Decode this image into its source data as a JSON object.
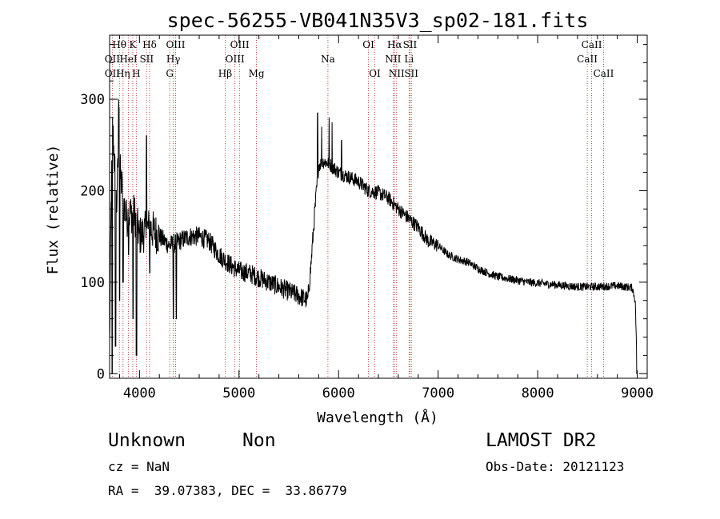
{
  "chart_data": {
    "type": "line",
    "title": "spec-56255-VB041N35V3_sp02-181.fits",
    "xlabel": "Wavelength (Å)",
    "ylabel": "Flux (relative)",
    "xlim": [
      3700,
      9100
    ],
    "ylim": [
      -5,
      370
    ],
    "xticks": [
      4000,
      5000,
      6000,
      7000,
      8000,
      9000
    ],
    "yticks": [
      0,
      100,
      200,
      300
    ],
    "line_color": "#000000",
    "marker_color": "#b22222",
    "spectrum_anchors": [
      [
        3700,
        30
      ],
      [
        3715,
        180
      ],
      [
        3730,
        270
      ],
      [
        3750,
        230
      ],
      [
        3770,
        180
      ],
      [
        3790,
        250
      ],
      [
        3810,
        215
      ],
      [
        3840,
        190
      ],
      [
        3870,
        170
      ],
      [
        3900,
        175
      ],
      [
        3950,
        175
      ],
      [
        4000,
        150
      ],
      [
        4100,
        160
      ],
      [
        4200,
        150
      ],
      [
        4300,
        140
      ],
      [
        4400,
        145
      ],
      [
        4500,
        150
      ],
      [
        4600,
        150
      ],
      [
        4700,
        145
      ],
      [
        4800,
        130
      ],
      [
        4900,
        120
      ],
      [
        5000,
        112
      ],
      [
        5100,
        110
      ],
      [
        5200,
        105
      ],
      [
        5300,
        100
      ],
      [
        5400,
        95
      ],
      [
        5500,
        90
      ],
      [
        5600,
        85
      ],
      [
        5690,
        80
      ],
      [
        5720,
        115
      ],
      [
        5760,
        175
      ],
      [
        5800,
        228
      ],
      [
        5850,
        232
      ],
      [
        5900,
        230
      ],
      [
        6000,
        220
      ],
      [
        6100,
        215
      ],
      [
        6200,
        210
      ],
      [
        6300,
        200
      ],
      [
        6400,
        198
      ],
      [
        6500,
        192
      ],
      [
        6600,
        180
      ],
      [
        6700,
        170
      ],
      [
        6800,
        160
      ],
      [
        6900,
        145
      ],
      [
        7000,
        140
      ],
      [
        7100,
        130
      ],
      [
        7200,
        125
      ],
      [
        7300,
        122
      ],
      [
        7400,
        115
      ],
      [
        7500,
        110
      ],
      [
        7600,
        106
      ],
      [
        7700,
        104
      ],
      [
        7800,
        102
      ],
      [
        7900,
        100
      ],
      [
        8000,
        99
      ],
      [
        8200,
        97
      ],
      [
        8400,
        95
      ],
      [
        8600,
        95
      ],
      [
        8800,
        96
      ],
      [
        8950,
        94
      ],
      [
        8980,
        80
      ],
      [
        9000,
        0
      ]
    ],
    "spectrum_dips": [
      [
        3725,
        0
      ],
      [
        3760,
        30
      ],
      [
        3800,
        80
      ],
      [
        3835,
        100
      ],
      [
        3890,
        130
      ],
      [
        3935,
        60
      ],
      [
        3970,
        20
      ],
      [
        4070,
        0
      ],
      [
        4103,
        110
      ],
      [
        4340,
        60
      ],
      [
        4370,
        60
      ]
    ],
    "spectrum_peaks": [
      [
        3790,
        300
      ],
      [
        3795,
        290
      ],
      [
        5790,
        285
      ],
      [
        5830,
        270
      ],
      [
        5905,
        280
      ],
      [
        5935,
        275
      ],
      [
        6030,
        255
      ],
      [
        4070,
        260
      ]
    ],
    "lines": [
      {
        "label": "Hθ",
        "wavelength": 3798,
        "row": 0,
        "dx": 0
      },
      {
        "label": "K",
        "wavelength": 3933,
        "row": 0,
        "dx": 0
      },
      {
        "label": "Hδ",
        "wavelength": 4102,
        "row": 0,
        "dx": 0
      },
      {
        "label": "OIII",
        "wavelength": 4363,
        "row": 0,
        "dx": 0
      },
      {
        "label": "OIII",
        "wavelength": 5007,
        "row": 0,
        "dx": 0
      },
      {
        "label": "OI",
        "wavelength": 6300,
        "row": 0,
        "dx": 0
      },
      {
        "label": "Hα",
        "wavelength": 6563,
        "row": 0,
        "dx": 0
      },
      {
        "label": "SII",
        "wavelength": 6717,
        "row": 0,
        "dx": 0
      },
      {
        "label": "CaII",
        "wavelength": 8542,
        "row": 0,
        "dx": 0
      },
      {
        "label": "OII",
        "wavelength": 3727,
        "row": 1,
        "dx": 0
      },
      {
        "label": "HeI",
        "wavelength": 3889,
        "row": 1,
        "dx": 0
      },
      {
        "label": "SII",
        "wavelength": 4072,
        "row": 1,
        "dx": 0
      },
      {
        "label": "Hγ",
        "wavelength": 4340,
        "row": 1,
        "dx": 0
      },
      {
        "label": "OIII",
        "wavelength": 4959,
        "row": 1,
        "dx": 0
      },
      {
        "label": "Na",
        "wavelength": 5893,
        "row": 1,
        "dx": 0
      },
      {
        "label": "NII",
        "wavelength": 6548,
        "row": 1,
        "dx": 0
      },
      {
        "label": "Li",
        "wavelength": 6708,
        "row": 1,
        "dx": 0
      },
      {
        "label": "CaII",
        "wavelength": 8498,
        "row": 1,
        "dx": 0
      },
      {
        "label": "OII",
        "wavelength": 3727,
        "row": 2,
        "dx": 0
      },
      {
        "label": "Hη",
        "wavelength": 3835,
        "row": 2,
        "dx": 0
      },
      {
        "label": "H",
        "wavelength": 3968,
        "row": 2,
        "dx": 0
      },
      {
        "label": "G",
        "wavelength": 4304,
        "row": 2,
        "dx": 0
      },
      {
        "label": "Hβ",
        "wavelength": 4861,
        "row": 2,
        "dx": 0
      },
      {
        "label": "Mg",
        "wavelength": 5175,
        "row": 2,
        "dx": 0
      },
      {
        "label": "OI",
        "wavelength": 6364,
        "row": 2,
        "dx": 0
      },
      {
        "label": "NII",
        "wavelength": 6583,
        "row": 2,
        "dx": 0
      },
      {
        "label": "SII",
        "wavelength": 6731,
        "row": 2,
        "dx": 0
      },
      {
        "label": "CaII",
        "wavelength": 8662,
        "row": 2,
        "dx": 0
      }
    ],
    "line_positions": [
      3727,
      3798,
      3835,
      3889,
      3933,
      3968,
      4072,
      4102,
      4304,
      4340,
      4363,
      4861,
      4959,
      5007,
      5175,
      5893,
      6300,
      6364,
      6548,
      6563,
      6583,
      6708,
      6717,
      6731,
      8498,
      8542,
      8662
    ]
  },
  "info": {
    "class": "Unknown",
    "subclass": "Non",
    "cz": "cz = NaN",
    "coords": "RA =  39.07383, DEC =  33.86779",
    "survey": "LAMOST DR2",
    "obs_date": "Obs-Date: 20121123"
  }
}
